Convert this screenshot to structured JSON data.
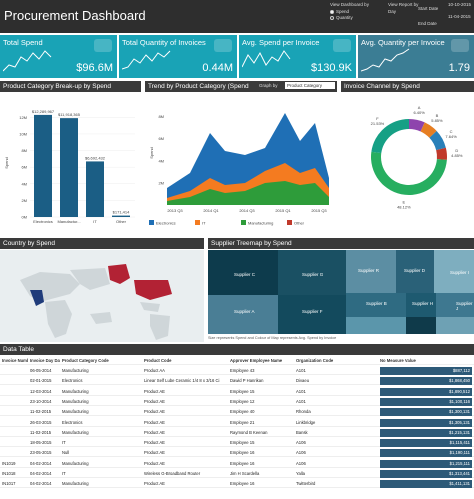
{
  "header": {
    "title": "Procurement Dashboard",
    "view_label": "View Dashboard by",
    "options": [
      "Spend",
      "Quantity"
    ],
    "report_label": "View Report by",
    "report_value": "Day",
    "start_label": "Start Date",
    "end_label": "End Date",
    "start_date": "10-10-2015",
    "end_date": "11-04-2015"
  },
  "kpis": [
    {
      "label": "Total Spend",
      "value": "$96.6M",
      "color": "#19a3b6"
    },
    {
      "label": "Total Quantity of Invoices",
      "value": "0.44M",
      "color": "#19a3b6"
    },
    {
      "label": "Avg. Spend per Invoice",
      "value": "$130.9K",
      "color": "#19a3b6"
    },
    {
      "label": "Avg. Quantity per Invoice",
      "value": "1.79",
      "color": "#3b7d94"
    }
  ],
  "panels": {
    "category": "Product Category Break-up by Spend",
    "trend": "Trend by Product Category (Spend",
    "trend_graph_by": "Graph by",
    "trend_select": "Product Category",
    "channel": "Invoice Channel by Spend",
    "country": "Country by Spend",
    "treemap": "Supplier Treemap by Spend",
    "data_table": "Data Table"
  },
  "chart_data": [
    {
      "type": "bar",
      "title": "Product Category Break-up by Spend",
      "ylabel": "Spend",
      "categories": [
        "Electronics",
        "Manufactur...",
        "IT",
        "Other"
      ],
      "values": [
        12.29,
        11.9,
        6.69,
        0.17
      ],
      "data_labels": [
        "$12,289,967",
        "$11,918,365",
        "$6,692,432",
        "$171,414"
      ],
      "y_ticks": [
        "0M",
        "2M",
        "4M",
        "6M",
        "8M",
        "10M",
        "12M"
      ],
      "ylim": [
        0,
        13
      ]
    },
    {
      "type": "area",
      "title": "Trend by Product Category (Spend",
      "ylabel": "Spend",
      "x": [
        "2013 Q3",
        "2014 Q1",
        "2014 Q3",
        "2015 Q1",
        "2015 Q3"
      ],
      "y_ticks": [
        "2M",
        "4M",
        "6M",
        "8M"
      ],
      "legend": [
        "Electronics",
        "IT",
        "Manufacturing",
        "Other"
      ],
      "colors": [
        "#1f6fb5",
        "#f47b20",
        "#2e9c3a",
        "#c0392b"
      ]
    },
    {
      "type": "pie",
      "title": "Invoice Channel by Spend",
      "labels": [
        "A",
        "B",
        "C",
        "D",
        "E",
        "F"
      ],
      "percents": [
        "6.40%",
        "5.85%",
        "7.64%",
        "4.85%",
        "48.12%",
        "21.53%"
      ],
      "values": [
        6.4,
        5.85,
        7.64,
        4.85,
        48.12,
        21.53
      ],
      "colors": [
        "#8e44ad",
        "#e67e22",
        "#2980b9",
        "#c0392b",
        "#27ae60",
        "#16a085"
      ]
    }
  ],
  "treemap": {
    "labels": [
      "Supplier C",
      "Supplier G",
      "Supplier A",
      "Supplier F",
      "Supplier R",
      "Supplier D",
      "Supplier I",
      "Supplier B",
      "Supplier H",
      "Supplier J"
    ],
    "note": "Size represents Spend and Colour of Map represents Avg. Spend by Invoice"
  },
  "table": {
    "columns": [
      "Invoice Number",
      "Invoice Day Date",
      "Product Category Code",
      "Product Code",
      "Approver Employee Name",
      "Organization Code",
      "No Measure Value"
    ],
    "rows": [
      [
        "",
        "06-05-2014",
        "Manufacturing",
        "Product AA",
        "Employee 43",
        "A101",
        "$887,112"
      ],
      [
        "",
        "02-01-2015",
        "Electronics",
        "Linear Self Lube Ceramic 1/4 8 x 3/16 Ci",
        "Dawid P Hanrikan",
        "Divaeu",
        "$1,868,450"
      ],
      [
        "",
        "12-03-2014",
        "Manufacturing",
        "Product AE",
        "Employee 15",
        "A101",
        "$1,890,512"
      ],
      [
        "",
        "23-10-2014",
        "Manufacturing",
        "Product AE",
        "Employee 12",
        "A101",
        "$1,100,116"
      ],
      [
        "",
        "11-02-2015",
        "Manufacturing",
        "Product AE",
        "Employee 40",
        "Rhonda",
        "$1,300,131"
      ],
      [
        "",
        "26-03-2015",
        "Electronics",
        "Product AE",
        "Employee 21",
        "Linkbridge",
        "$1,305,131"
      ],
      [
        "",
        "11-02-2015",
        "Manufacturing",
        "Product AE",
        "Raymond B Keenan",
        "Bansk",
        "$1,215,131"
      ],
      [
        "",
        "18-05-2015",
        "IT",
        "Product AE",
        "Employee 15",
        "A106",
        "$1,115,411"
      ],
      [
        "",
        "23-05-2015",
        "Null",
        "Product AE",
        "Employee 16",
        "A106",
        "$1,190,111"
      ],
      [
        "IN1019",
        "04-02-2014",
        "Manufacturing",
        "Product AE",
        "Employee 16",
        "A106",
        "$1,215,111"
      ],
      [
        "IN1018",
        "04-02-2014",
        "IT",
        "Wireless G-Broadband Router",
        "Jim H Scardella",
        "Yalla",
        "$1,313,441"
      ],
      [
        "IN1017",
        "04-02-2014",
        "Manufacturing",
        "Product AE",
        "Employee 16",
        "Twitterbird",
        "$1,411,131"
      ]
    ]
  }
}
